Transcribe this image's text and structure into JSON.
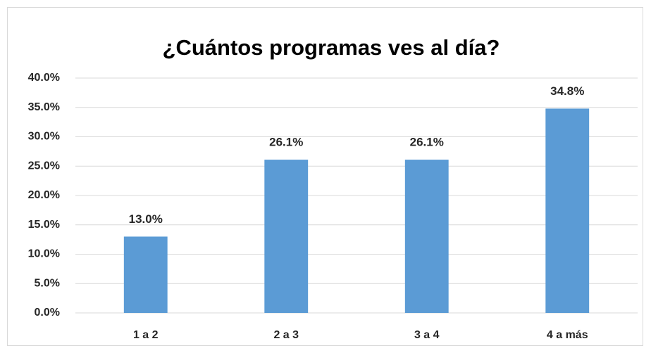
{
  "chart_data": {
    "type": "bar",
    "title": "¿Cuántos programas ves al día?",
    "categories": [
      "1 a 2",
      "2 a 3",
      "3 a 4",
      "4 a más"
    ],
    "values": [
      13.0,
      26.1,
      26.1,
      34.8
    ],
    "value_labels": [
      "13.0%",
      "26.1%",
      "26.1%",
      "34.8%"
    ],
    "color": "#5b9bd5",
    "ylim": [
      0,
      40
    ],
    "yticks": [
      {
        "value": 0,
        "label": "0.0%"
      },
      {
        "value": 5,
        "label": "5.0%"
      },
      {
        "value": 10,
        "label": "10.0%"
      },
      {
        "value": 15,
        "label": "15.0%"
      },
      {
        "value": 20,
        "label": "20.0%"
      },
      {
        "value": 25,
        "label": "25.0%"
      },
      {
        "value": 30,
        "label": "30.0%"
      },
      {
        "value": 35,
        "label": "35.0%"
      },
      {
        "value": 40,
        "label": "40.0%"
      }
    ],
    "grid": true
  }
}
